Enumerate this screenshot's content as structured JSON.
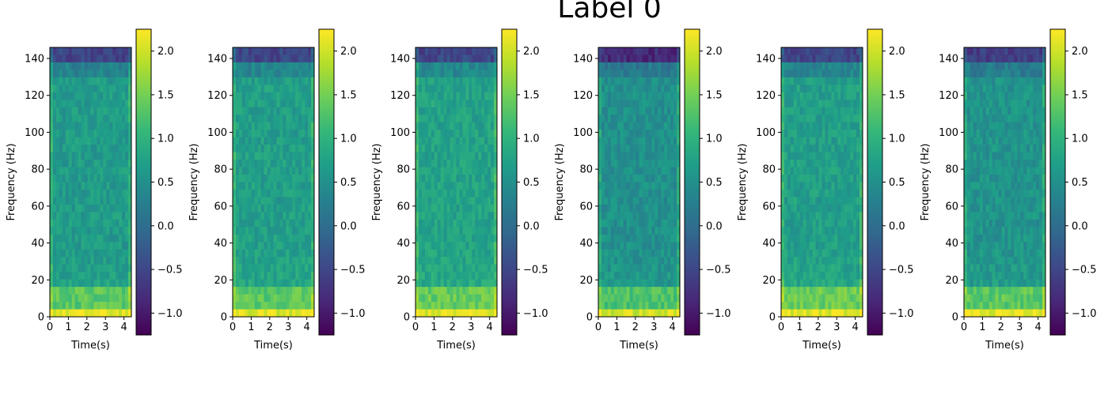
{
  "figure": {
    "title": "Label 0"
  },
  "chart_data": {
    "type": "heatmap",
    "colormap": "viridis",
    "panel_count": 6,
    "xlabel": "Time(s)",
    "ylabel": "Frequency (Hz)",
    "xlim": [
      0,
      4.4
    ],
    "ylim": [
      0,
      146
    ],
    "x_ticks": [
      0,
      1,
      2,
      3,
      4
    ],
    "y_ticks": [
      0,
      20,
      40,
      60,
      80,
      100,
      120,
      140
    ],
    "colorbar": {
      "range": [
        -1.25,
        2.25
      ],
      "ticks": [
        -1.0,
        -0.5,
        0.0,
        0.5,
        1.0,
        1.5,
        2.0
      ],
      "tick_labels": [
        "−1.0",
        "−0.5",
        "0.0",
        "0.5",
        "1.0",
        "1.5",
        "2.0"
      ]
    },
    "panels": [
      {
        "top_band_level": -0.55,
        "body_level": 0.65,
        "low_band_level": 1.35,
        "floor_level": 2.1
      },
      {
        "top_band_level": -0.5,
        "body_level": 0.7,
        "low_band_level": 1.35,
        "floor_level": 2.05
      },
      {
        "top_band_level": -0.5,
        "body_level": 0.75,
        "low_band_level": 1.4,
        "floor_level": 2.1
      },
      {
        "top_band_level": -0.8,
        "body_level": 0.5,
        "low_band_level": 1.25,
        "floor_level": 2.0
      },
      {
        "top_band_level": -0.5,
        "body_level": 0.7,
        "low_band_level": 1.45,
        "floor_level": 2.1
      },
      {
        "top_band_level": -0.6,
        "body_level": 0.55,
        "low_band_level": 1.35,
        "floor_level": 2.1
      }
    ]
  }
}
